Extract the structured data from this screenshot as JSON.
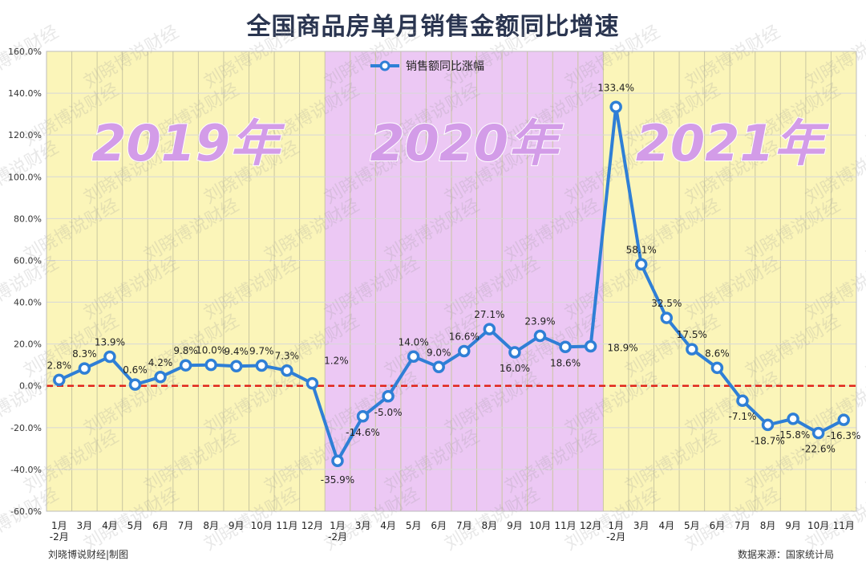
{
  "chart_data": {
    "type": "line",
    "title": "全国商品房单月销售金额同比增速",
    "xlabel": "",
    "ylabel": "",
    "ylim": [
      -60,
      160
    ],
    "y_ticks": [
      "-60.0%",
      "-40.0%",
      "-20.0%",
      "0.0%",
      "20.0%",
      "40.0%",
      "60.0%",
      "80.0%",
      "100.0%",
      "120.0%",
      "140.0%",
      "160.0%"
    ],
    "categories": [
      "1月\n-2月",
      "3月",
      "4月",
      "5月",
      "6月",
      "7月",
      "8月",
      "9月",
      "10月",
      "11月",
      "12月",
      "1月\n-2月",
      "3月",
      "4月",
      "5月",
      "6月",
      "7月",
      "8月",
      "9月",
      "10月",
      "11月",
      "12月",
      "1月\n-2月",
      "3月",
      "4月",
      "5月",
      "6月",
      "7月",
      "8月",
      "9月",
      "10月",
      "11月"
    ],
    "series": [
      {
        "name": "销售额同比涨幅",
        "color": "#2f7fd6",
        "values": [
          2.8,
          8.3,
          13.9,
          0.6,
          4.2,
          9.8,
          10.0,
          9.4,
          9.7,
          7.3,
          1.2,
          -35.9,
          -14.6,
          -5.0,
          14.0,
          9.0,
          16.6,
          27.1,
          16.0,
          23.9,
          18.6,
          18.9,
          133.4,
          58.1,
          32.5,
          17.5,
          8.6,
          -7.1,
          -18.7,
          -15.8,
          -22.6,
          -16.3
        ],
        "labels": [
          "2.8%",
          "8.3%",
          "13.9%",
          "0.6%",
          "4.2%",
          "9.8%",
          "10.0%",
          "9.4%",
          "9.7%",
          "7.3%",
          "1.2%",
          "-35.9%",
          "-14.6%",
          "-5.0%",
          "14.0%",
          "9.0%",
          "16.6%",
          "27.1%",
          "16.0%",
          "23.9%",
          "18.6%",
          "18.9%",
          "133.4%",
          "58.1%",
          "32.5%",
          "17.5%",
          "8.6%",
          "-7.1%",
          "-18.7%",
          "-15.8%",
          "-22.6%",
          "-16.3%"
        ]
      }
    ],
    "year_bands": [
      {
        "label": "2019年",
        "from": 0,
        "to": 10,
        "color": "#fbf5b9"
      },
      {
        "label": "2020年",
        "from": 11,
        "to": 21,
        "color": "#ecc8f4"
      },
      {
        "label": "2021年",
        "from": 22,
        "to": 31,
        "color": "#fbf5b9"
      }
    ],
    "zero_line_color": "#e0251b",
    "legend_position": "top"
  },
  "watermark": "刘晓博说财经",
  "footer": {
    "credit": "刘晓博说财经|制图",
    "source": "数据来源：国家统计局"
  }
}
